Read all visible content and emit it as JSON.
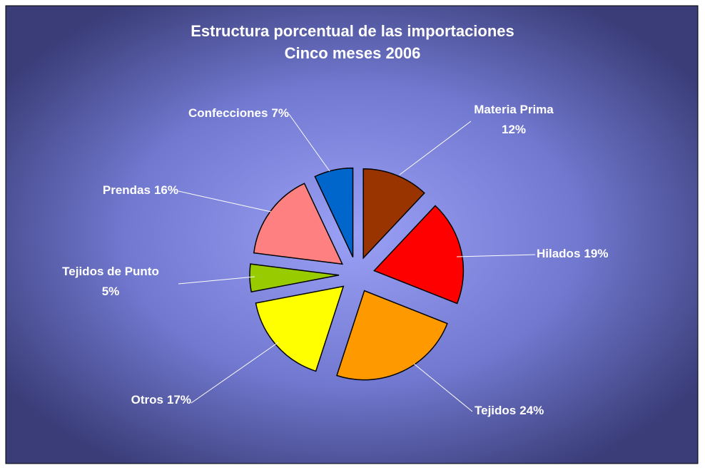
{
  "chart_data": {
    "type": "pie",
    "title": "Estructura porcentual de las importaciones",
    "subtitle": "Cinco meses 2006",
    "categories": [
      "Materia Prima",
      "Hilados",
      "Tejidos",
      "Otros",
      "Tejidos de Punto",
      "Prendas",
      "Confecciones"
    ],
    "values": [
      12,
      19,
      24,
      17,
      5,
      16,
      7
    ],
    "value_labels": [
      "12%",
      "19%",
      "24%",
      "17%",
      "5%",
      "16%",
      "7%"
    ],
    "colors": [
      "#993300",
      "#ff0000",
      "#ff9900",
      "#ffff00",
      "#99cc00",
      "#ff8080",
      "#0066cc"
    ]
  }
}
